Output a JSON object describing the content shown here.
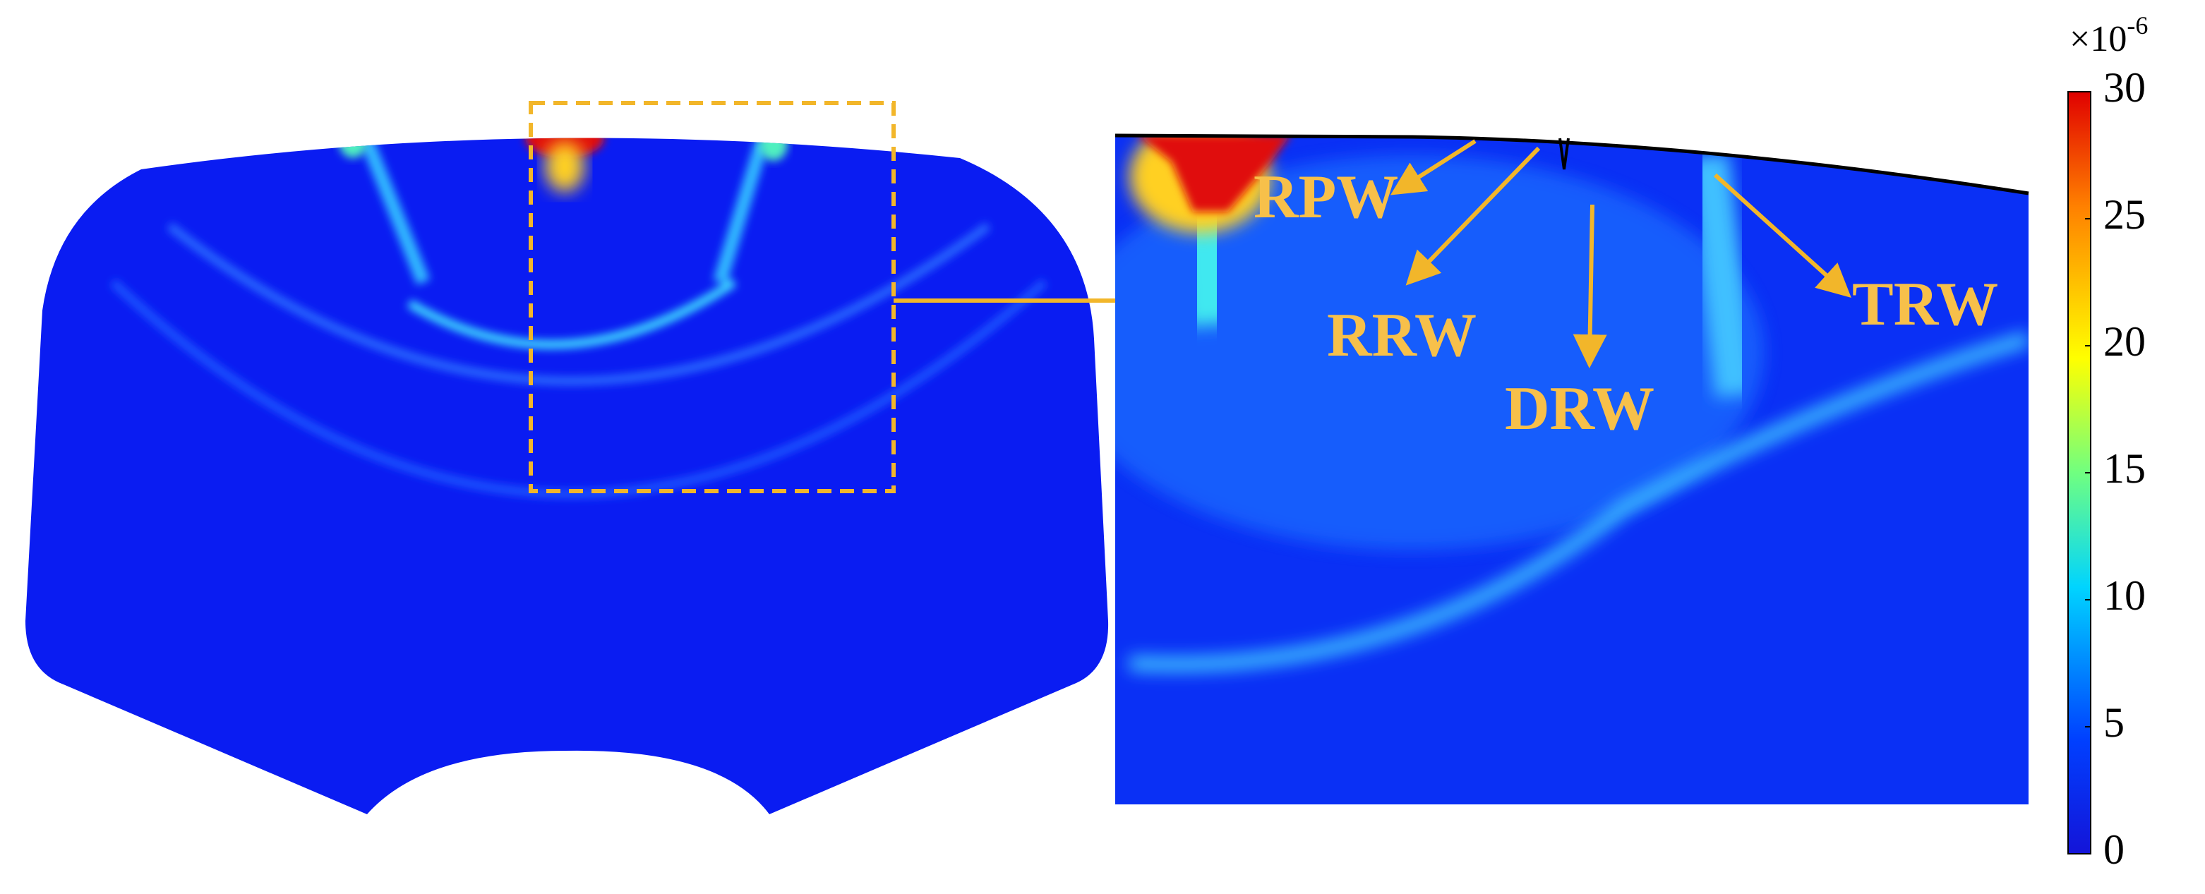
{
  "colorbar": {
    "multiplier": {
      "base": "×10",
      "exponent": "-6"
    },
    "range": [
      0,
      30
    ],
    "ticks": [
      0,
      5,
      10,
      15,
      20,
      25,
      30
    ]
  },
  "labels": {
    "rpw": "RPW",
    "rrw": "RRW",
    "drw": "DRW",
    "trw": "TRW"
  }
}
